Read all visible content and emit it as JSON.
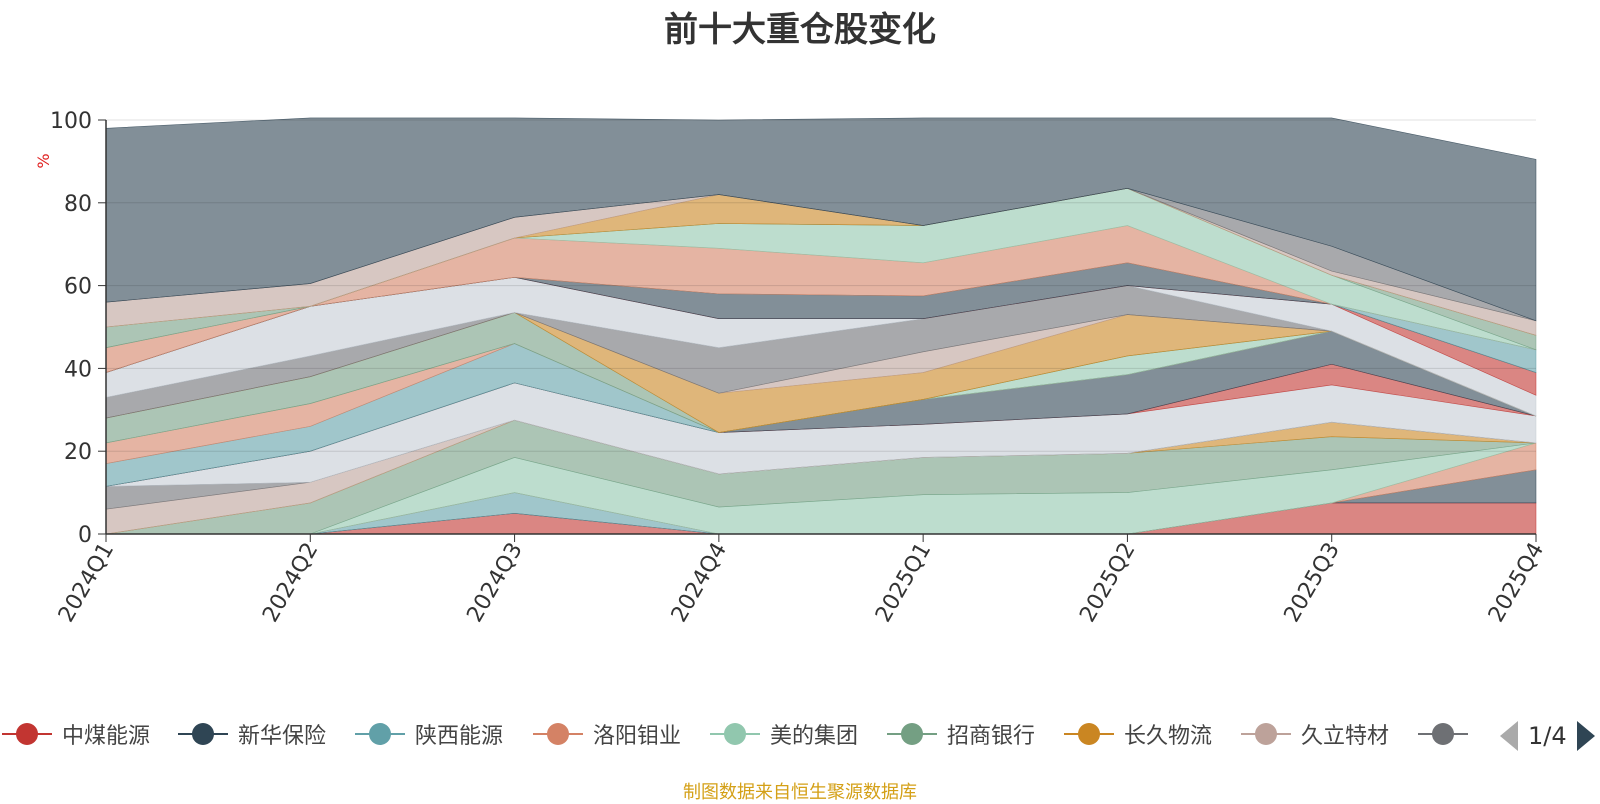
{
  "chart_data": {
    "type": "area",
    "title": "前十大重仓股变化",
    "ylabel": "%",
    "ylim": [
      0,
      100
    ],
    "yticks": [
      0,
      20,
      40,
      60,
      80,
      100
    ],
    "grid": true,
    "categories": [
      "2024Q1",
      "2024Q2",
      "2024Q3",
      "2024Q4",
      "2025Q1",
      "2025Q2",
      "2025Q3",
      "2025Q4"
    ],
    "series": [
      {
        "name": "中煤能源",
        "color": "#c23531",
        "values": [
          0,
          0,
          5,
          0,
          0,
          0,
          7.5,
          7.5
        ]
      },
      {
        "name": "新华保险",
        "color": "#2f4554",
        "values": [
          0,
          0,
          0,
          0,
          0,
          0,
          0,
          8
        ]
      },
      {
        "name": "陕西能源",
        "color": "#61a0a8",
        "values": [
          0,
          0,
          5,
          0,
          0,
          0,
          0,
          0
        ]
      },
      {
        "name": "洛阳钼业",
        "color": "#d48265",
        "values": [
          0,
          0,
          0,
          0,
          0,
          0,
          0,
          6.5
        ]
      },
      {
        "name": "美的集团",
        "color": "#91c7ae",
        "values": [
          0,
          0,
          8.5,
          6.5,
          9.5,
          10,
          8,
          0
        ]
      },
      {
        "name": "招商银行",
        "color": "#749f83",
        "values": [
          0,
          7.5,
          9,
          8,
          9,
          9.5,
          8,
          0
        ]
      },
      {
        "name": "长久物流",
        "color": "#ca8622",
        "values": [
          0,
          0,
          0,
          0,
          0,
          0,
          3.5,
          0
        ]
      },
      {
        "name": "久立特材",
        "color": "#bda29a",
        "values": [
          6,
          5,
          0,
          0,
          0,
          0,
          0,
          0
        ]
      },
      {
        "name": "",
        "color": "#6e7074",
        "values": [
          5.5,
          0,
          0,
          0,
          0,
          0,
          0,
          0
        ]
      },
      {
        "name": "",
        "color": "#c4ccd3",
        "values": [
          0,
          7.5,
          9,
          10,
          8,
          9.5,
          9,
          6.5
        ]
      },
      {
        "name": "",
        "color": "#c23531",
        "values": [
          0,
          0,
          0,
          0,
          0,
          0,
          5,
          0
        ]
      },
      {
        "name": "",
        "color": "#2f4554",
        "values": [
          0,
          0,
          0,
          0,
          6,
          9.5,
          8,
          0
        ]
      },
      {
        "name": "",
        "color": "#61a0a8",
        "values": [
          5.5,
          6,
          9.5,
          0,
          0,
          0,
          0,
          0
        ]
      },
      {
        "name": "",
        "color": "#d48265",
        "values": [
          5,
          5.5,
          0,
          0,
          0,
          0,
          0,
          0
        ]
      },
      {
        "name": "",
        "color": "#91c7ae",
        "values": [
          0,
          0,
          0,
          0,
          0,
          4.5,
          0,
          0
        ]
      },
      {
        "name": "",
        "color": "#749f83",
        "values": [
          6,
          6.5,
          7.5,
          0,
          0,
          0,
          0,
          0
        ]
      },
      {
        "name": "",
        "color": "#ca8622",
        "values": [
          0,
          0,
          0,
          9.5,
          6.5,
          10,
          0,
          0
        ]
      },
      {
        "name": "",
        "color": "#bda29a",
        "values": [
          0,
          0,
          0,
          0,
          5,
          0,
          0,
          0
        ]
      },
      {
        "name": "",
        "color": "#6e7074",
        "values": [
          5,
          5,
          0,
          11,
          8,
          7,
          0,
          0
        ]
      },
      {
        "name": "",
        "color": "#c4ccd3",
        "values": [
          6,
          12,
          8.5,
          7,
          0,
          0,
          6.5,
          5
        ]
      },
      {
        "name": "",
        "color": "#c23531",
        "values": [
          0,
          0,
          0,
          0,
          0,
          0,
          0,
          5.5
        ]
      },
      {
        "name": "",
        "color": "#2f4554",
        "values": [
          0,
          0,
          0,
          6,
          5.5,
          5.5,
          0,
          0
        ]
      },
      {
        "name": "",
        "color": "#61a0a8",
        "values": [
          0,
          0,
          0,
          0,
          0,
          0,
          0,
          5.5
        ]
      },
      {
        "name": "",
        "color": "#d48265",
        "values": [
          6,
          0,
          9.5,
          11,
          8,
          9,
          0,
          0
        ]
      },
      {
        "name": "",
        "color": "#91c7ae",
        "values": [
          0,
          0,
          0,
          6,
          9,
          9,
          7,
          0
        ]
      },
      {
        "name": "",
        "color": "#749f83",
        "values": [
          5,
          0,
          0,
          0,
          0,
          0,
          0,
          3.5
        ]
      },
      {
        "name": "",
        "color": "#ca8622",
        "values": [
          0,
          0,
          0,
          7,
          0,
          0,
          0,
          0
        ]
      },
      {
        "name": "",
        "color": "#bda29a",
        "values": [
          6,
          5.5,
          5,
          0,
          0,
          0,
          1,
          3.5
        ]
      },
      {
        "name": "",
        "color": "#6e7074",
        "values": [
          0,
          0,
          0,
          0,
          0,
          0,
          6,
          0
        ]
      },
      {
        "name": "",
        "color": "#2f4554",
        "values": [
          42,
          40,
          24,
          18,
          26,
          17,
          31,
          39
        ]
      }
    ]
  },
  "legend": {
    "items": [
      {
        "name": "中煤能源",
        "color": "#c23531"
      },
      {
        "name": "新华保险",
        "color": "#2f4554"
      },
      {
        "name": "陕西能源",
        "color": "#61a0a8"
      },
      {
        "name": "洛阳钼业",
        "color": "#d48265"
      },
      {
        "name": "美的集团",
        "color": "#91c7ae"
      },
      {
        "name": "招商银行",
        "color": "#749f83"
      },
      {
        "name": "长久物流",
        "color": "#ca8622"
      },
      {
        "name": "久立特材",
        "color": "#bda29a"
      },
      {
        "name": "",
        "color": "#6e7074"
      }
    ],
    "page": "1/4"
  },
  "source_text": "制图数据来自恒生聚源数据库",
  "colors": {
    "title": "#333333",
    "axis": "#333333",
    "ylabel": "#e02020",
    "source": "#d4a017"
  }
}
